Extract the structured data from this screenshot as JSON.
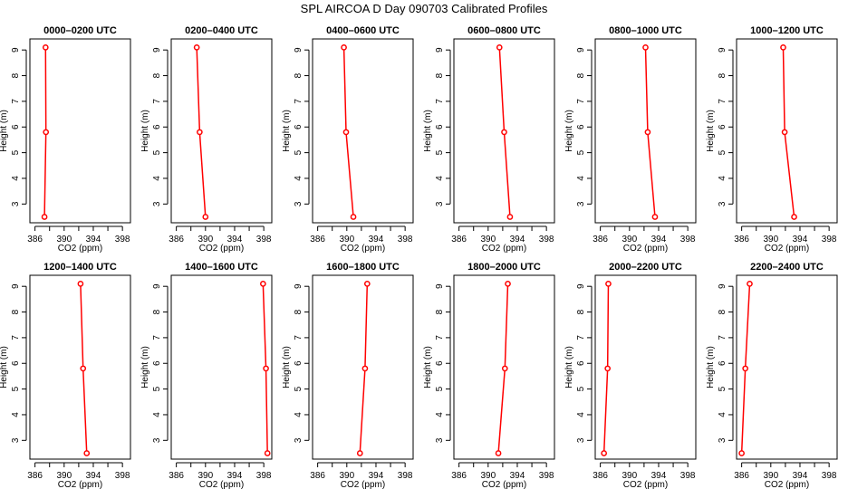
{
  "chart_data": {
    "type": "line",
    "title": "SPL AIRCOA D  Day 090703  Calibrated Profiles",
    "layout": "2 rows x 6 panels",
    "xlabel": "CO2 (ppm)",
    "ylabel": "Height (m)",
    "xlim": [
      385.3,
      399.1
    ],
    "ylim": [
      2.27,
      9.43
    ],
    "xticks": [
      386,
      388,
      390,
      392,
      394,
      396,
      398
    ],
    "xtick_labels": [
      "386",
      "390",
      "394",
      "398"
    ],
    "yticks": [
      "3",
      "4",
      "5",
      "6",
      "7",
      "8",
      "9"
    ],
    "heights": [
      9.1,
      5.8,
      2.5
    ],
    "line_color": "#ff0000",
    "grid": false,
    "panels": [
      {
        "title": "0000–0200 UTC",
        "co2": [
          387.45,
          387.5,
          387.3
        ]
      },
      {
        "title": "0200–0400 UTC",
        "co2": [
          388.8,
          389.2,
          390.0
        ]
      },
      {
        "title": "0400–0600 UTC",
        "co2": [
          389.6,
          389.9,
          390.9
        ]
      },
      {
        "title": "0600–0800 UTC",
        "co2": [
          391.55,
          392.2,
          393.0
        ]
      },
      {
        "title": "0800–1000 UTC",
        "co2": [
          392.2,
          392.5,
          393.5
        ]
      },
      {
        "title": "1000–1200 UTC",
        "co2": [
          391.7,
          391.9,
          393.2
        ]
      },
      {
        "title": "1200–1400 UTC",
        "co2": [
          392.25,
          392.6,
          393.1
        ]
      },
      {
        "title": "1400–1600 UTC",
        "co2": [
          397.9,
          398.3,
          398.5
        ]
      },
      {
        "title": "1600–1800 UTC",
        "co2": [
          392.8,
          392.5,
          391.8
        ]
      },
      {
        "title": "1800–2000 UTC",
        "co2": [
          392.7,
          392.3,
          391.4
        ]
      },
      {
        "title": "2000–2200 UTC",
        "co2": [
          387.1,
          387.0,
          386.5
        ]
      },
      {
        "title": "2200–2400 UTC",
        "co2": [
          387.1,
          386.5,
          386.0
        ]
      }
    ]
  }
}
